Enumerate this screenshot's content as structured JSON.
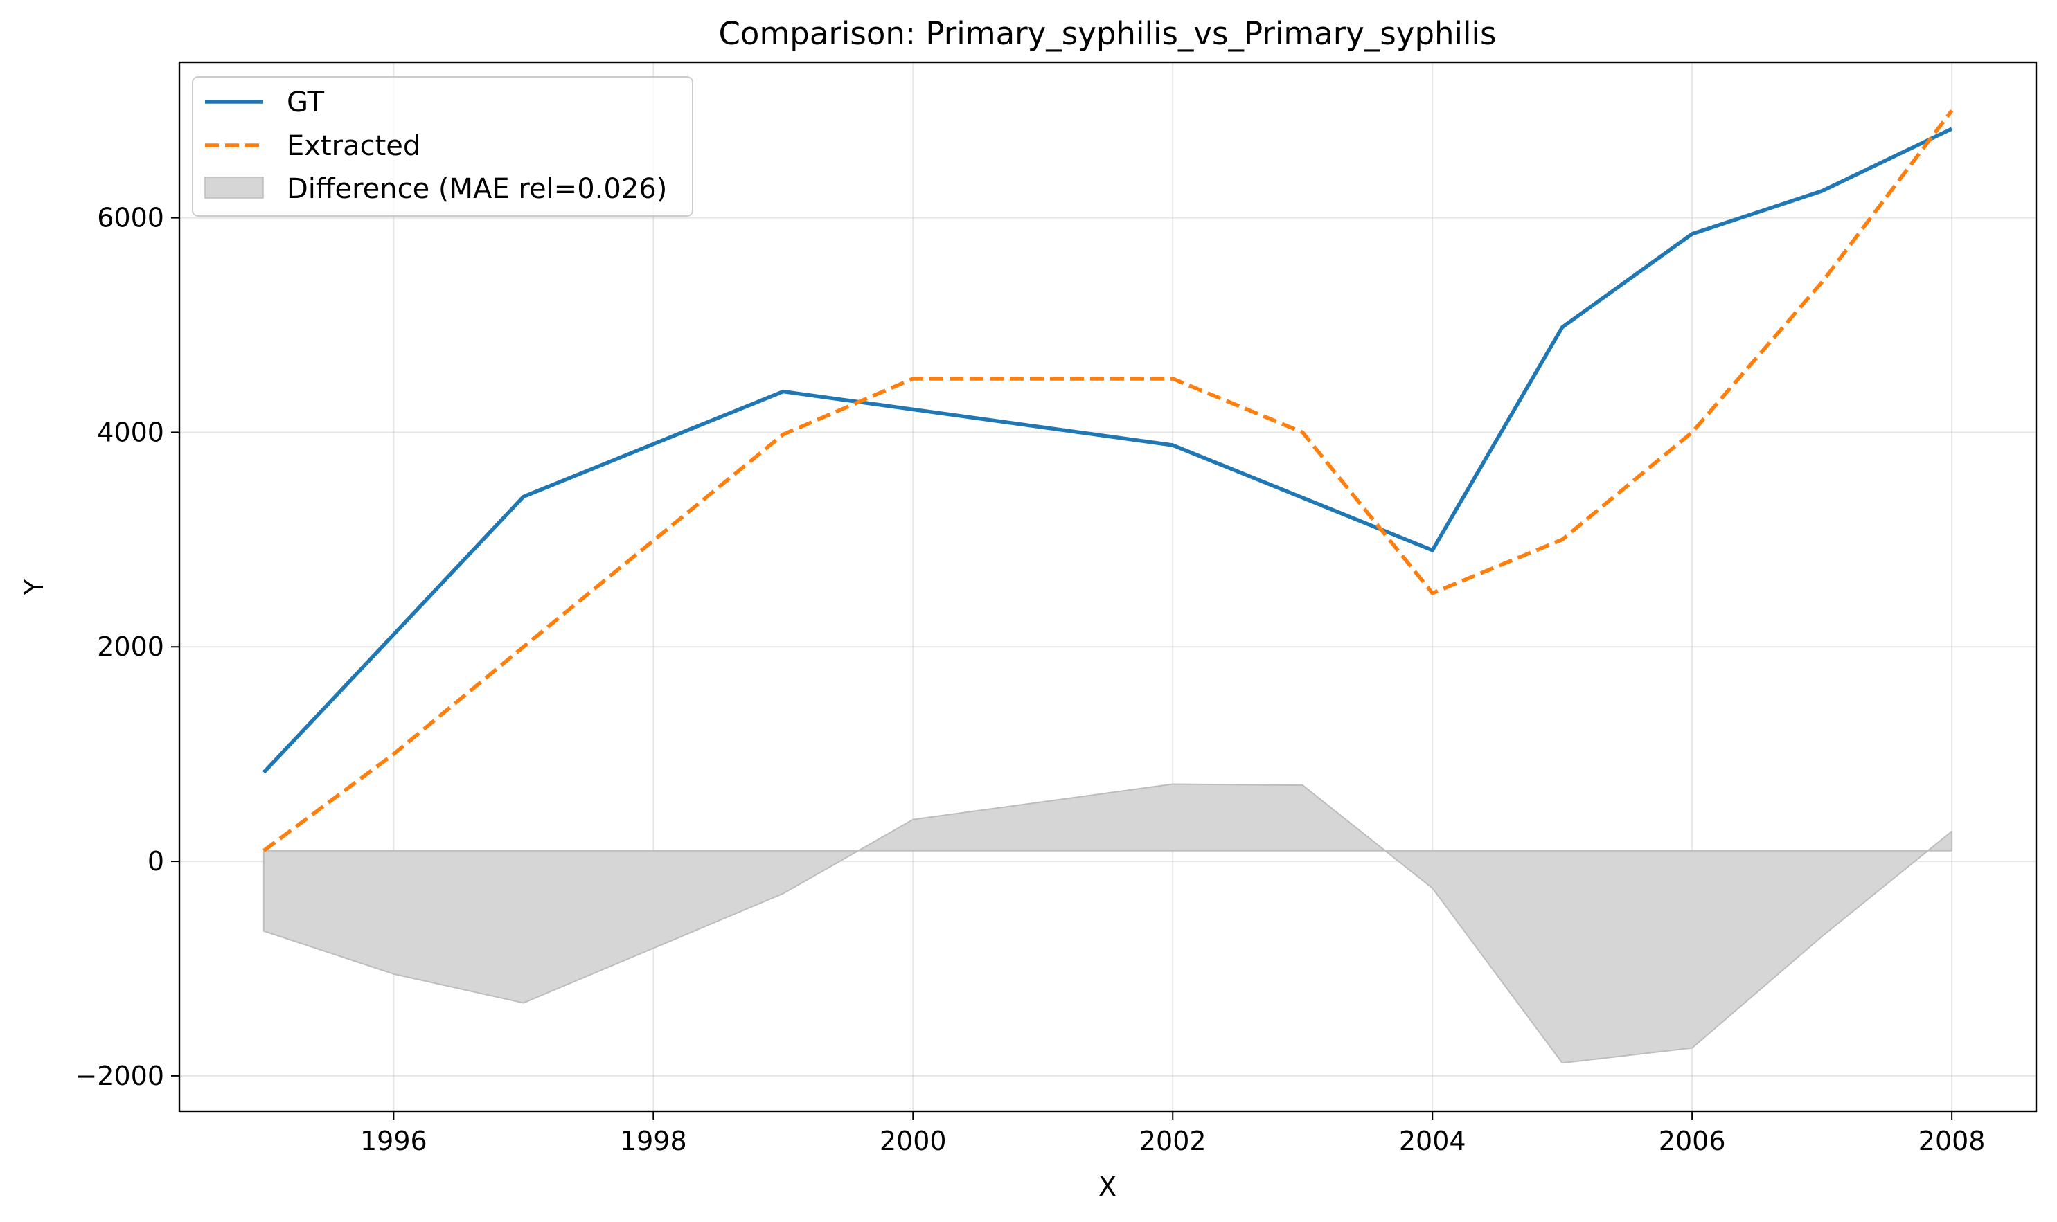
{
  "chart_data": {
    "type": "line",
    "title": "Comparison: Primary_syphilis_vs_Primary_syphilis",
    "xlabel": "X",
    "ylabel": "Y",
    "xlim": [
      1994.35,
      2008.65
    ],
    "ylim": [
      -2330,
      7450
    ],
    "grid": true,
    "legend_position": "top-left",
    "x_ticks": [
      1996,
      1998,
      2000,
      2002,
      2004,
      2006,
      2008
    ],
    "y_ticks": [
      -2000,
      0,
      2000,
      4000,
      6000
    ],
    "y_tick_labels": [
      "−2000",
      "0",
      "2000",
      "4000",
      "6000"
    ],
    "series": [
      {
        "name": "GT",
        "color": "#1f77b4",
        "style": "solid",
        "x": [
          1995,
          1997,
          1999,
          2002,
          2004,
          2005,
          2006,
          2007,
          2008
        ],
        "y": [
          830,
          3400,
          4380,
          3880,
          2900,
          4980,
          5850,
          6250,
          6830
        ]
      },
      {
        "name": "Extracted",
        "color": "#ff7f0e",
        "style": "dashed",
        "x": [
          1995,
          1996,
          1997,
          1999,
          2000,
          2002,
          2003,
          2004,
          2005,
          2006,
          2007,
          2008
        ],
        "y": [
          100,
          1000,
          2000,
          3980,
          4500,
          4500,
          4000,
          2500,
          3000,
          4000,
          5400,
          7000
        ]
      }
    ],
    "difference": {
      "name": "Difference (MAE rel=0.026)",
      "color": "#d6d6d6",
      "edge_color": "#bdbdbd",
      "baseline": 100,
      "x": [
        1995,
        1996,
        1997,
        1999,
        2000,
        2002,
        2003,
        2004,
        2005,
        2006,
        2007,
        2008
      ],
      "y": [
        -650,
        -1050,
        -1320,
        -300,
        390,
        720,
        710,
        -250,
        -1880,
        -1740,
        -700,
        280
      ]
    }
  }
}
